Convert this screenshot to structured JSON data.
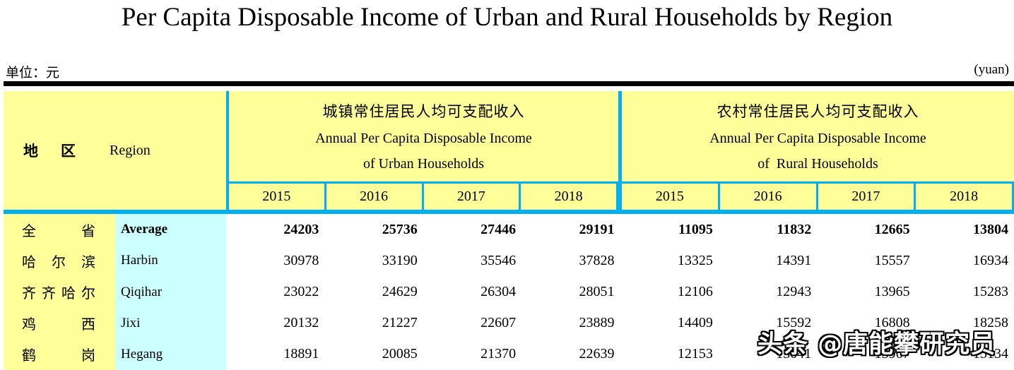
{
  "title": "Per Capita Disposable Income of Urban and Rural Households by Region",
  "unit": {
    "left": "单位：元",
    "right": "(yuan)"
  },
  "colors": {
    "header_yellow": "#ffff99",
    "name_column_cyan": "#ccffff",
    "grid_accent_cyan": "#00b0f0",
    "top_rule_black": "#000000"
  },
  "table": {
    "region_header": {
      "cn_char1": "地",
      "cn_char2": "区",
      "en": "Region"
    },
    "sections": [
      {
        "cn": "城镇常住居民人均可支配收入",
        "en_line1": "Annual Per Capita Disposable Income",
        "en_line2": "of Urban Households",
        "years": [
          "2015",
          "2016",
          "2017",
          "2018"
        ]
      },
      {
        "cn": "农村常住居民人均可支配收入",
        "en_line1": "Annual Per Capita Disposable Income",
        "en_line2": "of  Rural Households",
        "years": [
          "2015",
          "2016",
          "2017",
          "2018"
        ]
      }
    ],
    "rows": [
      {
        "cn": "全　省",
        "en": "Average",
        "bold": true,
        "urban": [
          "24203",
          "25736",
          "27446",
          "29191"
        ],
        "rural": [
          "11095",
          "11832",
          "12665",
          "13804"
        ]
      },
      {
        "cn": "哈 尔 滨",
        "en": "Harbin",
        "bold": false,
        "urban": [
          "30978",
          "33190",
          "35546",
          "37828"
        ],
        "rural": [
          "13325",
          "14391",
          "15557",
          "16934"
        ]
      },
      {
        "cn": "齐齐哈尔",
        "en": "Qiqihar",
        "bold": false,
        "urban": [
          "23022",
          "24629",
          "26304",
          "28051"
        ],
        "rural": [
          "12106",
          "12943",
          "13965",
          "15283"
        ]
      },
      {
        "cn": "鸡　西",
        "en": "Jixi",
        "bold": false,
        "urban": [
          "20132",
          "21227",
          "22607",
          "23889"
        ],
        "rural": [
          "14409",
          "15592",
          "16808",
          "18258"
        ]
      },
      {
        "cn": "鹤　岗",
        "en": "Hegang",
        "bold": false,
        "urban": [
          "18891",
          "20085",
          "21370",
          "22639"
        ],
        "rural": [
          "12153",
          "13041",
          "13967",
          "15134"
        ]
      }
    ]
  },
  "watermark": "头条 @唐能攀研究员"
}
